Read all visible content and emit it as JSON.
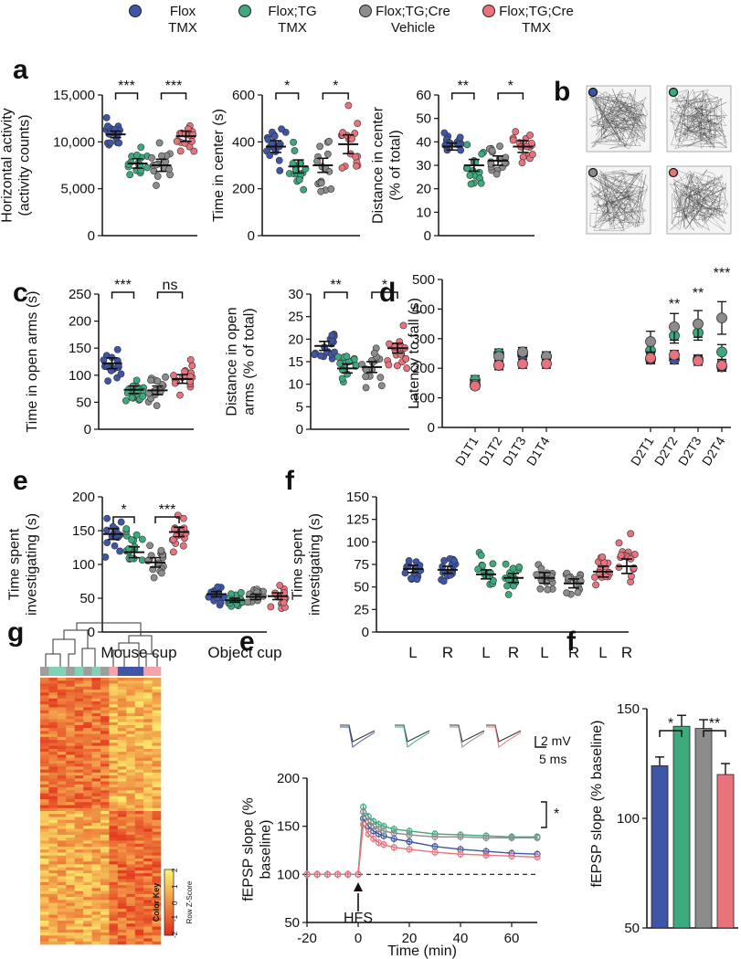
{
  "colors": {
    "flox_tmx": "#3f56a6",
    "flox_tg_tmx": "#3daa7d",
    "flox_tg_cre_vehicle": "#8c8c8c",
    "flox_tg_cre_tmx": "#e8737c"
  },
  "legend": [
    {
      "line1": "Flox",
      "line2": "TMX",
      "color": "#3f56a6"
    },
    {
      "line1": "Flox;TG",
      "line2": "TMX",
      "color": "#3daa7d"
    },
    {
      "line1": "Flox;TG;Cre",
      "line2": "Vehicle",
      "color": "#8c8c8c"
    },
    {
      "line1": "Flox;TG;Cre",
      "line2": "TMX",
      "color": "#e8737c"
    }
  ],
  "panel_letters": {
    "a": "a",
    "b": "b",
    "c": "c",
    "d": "d",
    "e": "e",
    "f": "f",
    "g": "g",
    "e2": "e",
    "f2": "f"
  },
  "chart_data": [
    {
      "id": "a1",
      "type": "scatter",
      "ylabel_lines": [
        "Horizontal activity",
        "(activity counts)"
      ],
      "ylim": [
        0,
        15000
      ],
      "yticks": [
        "0",
        "5,000",
        "10,000",
        "15,000"
      ],
      "means": [
        10800,
        7700,
        7500,
        10600
      ],
      "sems": [
        350,
        500,
        650,
        550
      ],
      "sig": [
        "***",
        "***"
      ]
    },
    {
      "id": "a2",
      "type": "scatter",
      "ylabel_lines": [
        "Time in center (s)"
      ],
      "ylim": [
        0,
        600
      ],
      "yticks": [
        "0",
        "200",
        "400",
        "600"
      ],
      "means": [
        380,
        295,
        300,
        390
      ],
      "sems": [
        25,
        28,
        30,
        40
      ],
      "sig": [
        "*",
        "*"
      ]
    },
    {
      "id": "a3",
      "type": "scatter",
      "ylabel_lines": [
        "Distance in center",
        "(% of total)"
      ],
      "ylim": [
        0,
        60
      ],
      "yticks": [
        "0",
        "10",
        "20",
        "30",
        "40",
        "50",
        "60"
      ],
      "means": [
        38,
        30,
        32,
        38
      ],
      "sems": [
        1.5,
        2.5,
        2.0,
        2.5
      ],
      "sig": [
        "**",
        "*"
      ]
    },
    {
      "id": "c1",
      "type": "scatter",
      "ylabel_lines": [
        "Time in open arms (s)"
      ],
      "ylim": [
        0,
        250
      ],
      "yticks": [
        "0",
        "50",
        "100",
        "150",
        "200",
        "250"
      ],
      "means": [
        122,
        73,
        72,
        93
      ],
      "sems": [
        10,
        7,
        8,
        8
      ],
      "sig": [
        "***",
        "ns"
      ]
    },
    {
      "id": "c2",
      "type": "scatter",
      "ylabel_lines": [
        "Distance in open",
        "arms (% of total)"
      ],
      "ylim": [
        0,
        30
      ],
      "yticks": [
        "0",
        "5",
        "10",
        "15",
        "20",
        "25",
        "30"
      ],
      "means": [
        18.5,
        13.5,
        13.8,
        18.0
      ],
      "sems": [
        1.0,
        1.0,
        1.2,
        1.1
      ],
      "sig": [
        "**",
        "*"
      ]
    },
    {
      "id": "d",
      "type": "scatter",
      "ylabel": "Latency to fall (s)",
      "ylim": [
        0,
        500
      ],
      "yticks": [
        "0",
        "100",
        "200",
        "300",
        "400",
        "500"
      ],
      "categories": [
        "D1T1",
        "D1T2",
        "D1T3",
        "D1T4",
        "D2T1",
        "D2T2",
        "D2T3",
        "D2T4"
      ],
      "series": [
        {
          "values": [
            145,
            210,
            245,
            240,
            230,
            230,
            230,
            205
          ],
          "errors": [
            10,
            15,
            15,
            15,
            15,
            15,
            15,
            15
          ]
        },
        {
          "values": [
            160,
            250,
            255,
            240,
            260,
            310,
            320,
            255
          ],
          "errors": [
            15,
            15,
            15,
            15,
            25,
            25,
            25,
            25
          ]
        },
        {
          "values": [
            145,
            240,
            255,
            240,
            290,
            340,
            350,
            370
          ],
          "errors": [
            15,
            15,
            15,
            15,
            35,
            45,
            45,
            55
          ]
        },
        {
          "values": [
            140,
            210,
            215,
            215,
            235,
            245,
            225,
            210
          ],
          "errors": [
            10,
            15,
            15,
            15,
            15,
            15,
            15,
            15
          ]
        }
      ],
      "annotations": [
        {
          "category": "D2T2",
          "text": "**"
        },
        {
          "category": "D2T3",
          "text": "**"
        },
        {
          "category": "D2T4",
          "text": "***"
        }
      ]
    },
    {
      "id": "e1",
      "type": "scatter",
      "ylabel_lines": [
        "Time spent",
        "investigating (s)"
      ],
      "ylim": [
        0,
        200
      ],
      "yticks": [
        "0",
        "50",
        "100",
        "150",
        "200"
      ],
      "categories": [
        "Mouse cup",
        "Object cup"
      ],
      "means": [
        [
          145,
          118,
          103,
          148
        ],
        [
          56,
          47,
          52,
          53
        ]
      ],
      "sems": [
        [
          8,
          8,
          7,
          7
        ],
        [
          4,
          3,
          4,
          5
        ]
      ],
      "sig": [
        "*",
        "***"
      ]
    },
    {
      "id": "f1",
      "type": "scatter",
      "ylabel_lines": [
        "Time spent",
        "investigating (s)"
      ],
      "ylim": [
        0,
        150
      ],
      "yticks": [
        "0",
        "25",
        "50",
        "75",
        "100",
        "125",
        "150"
      ],
      "categories": [
        "L",
        "R",
        "L",
        "R",
        "L",
        "R",
        "L",
        "R"
      ],
      "means": [
        70,
        69,
        64,
        60,
        60,
        54,
        67,
        73
      ],
      "sems": [
        4,
        4,
        5,
        5,
        6,
        5,
        6,
        8
      ]
    },
    {
      "id": "g",
      "type": "heatmap",
      "legend_title": "Color Key",
      "legend_label": "Row Z-Score",
      "legend_ticks": [
        "-2",
        "-1",
        "0",
        "1",
        "2"
      ]
    },
    {
      "id": "e2",
      "type": "line",
      "xlabel": "Time (min)",
      "ylabel_lines": [
        "fEPSP slope (%",
        "baseline)"
      ],
      "xlim": [
        -20,
        70
      ],
      "ylim": [
        50,
        200
      ],
      "xticks": [
        "-20",
        "0",
        "20",
        "40",
        "60"
      ],
      "yticks": [
        "50",
        "100",
        "150",
        "200"
      ],
      "arrow_label": "HFS",
      "scale_v": "2 mV",
      "scale_h": "5 ms",
      "sig": "*",
      "x": [
        -20,
        -16,
        -12,
        -8,
        -4,
        0,
        2,
        4,
        6,
        8,
        10,
        14,
        20,
        30,
        40,
        50,
        60,
        70
      ],
      "series": [
        {
          "values": [
            100,
            100,
            100,
            100,
            100,
            100,
            158,
            150,
            145,
            142,
            140,
            137,
            134,
            129,
            126,
            124,
            122,
            121
          ]
        },
        {
          "values": [
            100,
            100,
            100,
            100,
            100,
            100,
            170,
            160,
            155,
            152,
            150,
            147,
            145,
            142,
            141,
            140,
            139,
            139
          ]
        },
        {
          "values": [
            100,
            100,
            100,
            100,
            100,
            100,
            165,
            155,
            150,
            147,
            145,
            143,
            141,
            139,
            139,
            138,
            138,
            138
          ]
        },
        {
          "values": [
            100,
            100,
            100,
            100,
            100,
            100,
            152,
            142,
            137,
            133,
            131,
            128,
            126,
            123,
            121,
            120,
            119,
            118
          ]
        }
      ]
    },
    {
      "id": "f2",
      "type": "bar",
      "ylabel": "fEPSP slope (% baseline)",
      "ylim": [
        50,
        150
      ],
      "yticks": [
        "50",
        "100",
        "150"
      ],
      "values": [
        124,
        142,
        141,
        120
      ],
      "errors": [
        4,
        5,
        4,
        5
      ],
      "sig": [
        "*",
        "**"
      ]
    }
  ]
}
